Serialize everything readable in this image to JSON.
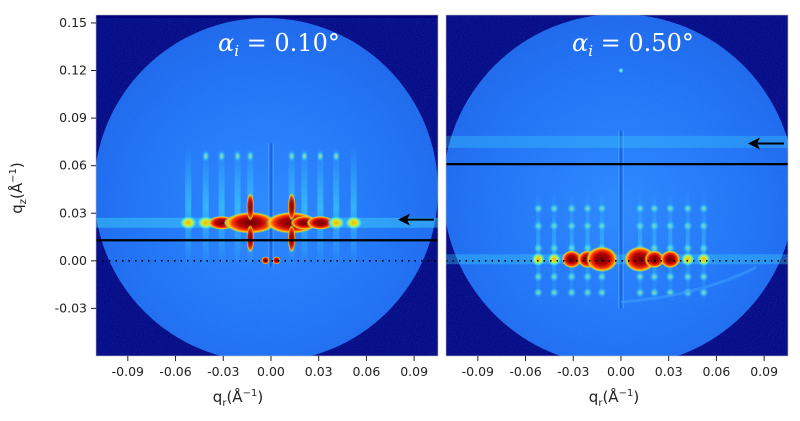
{
  "chart_data": [
    {
      "type": "heatmap",
      "panel": "left",
      "title_symbol": "α",
      "title_sub": "i",
      "title_value": " = 0.10°",
      "xlabel_main": "q",
      "xlabel_sub": "r",
      "xlabel_unit": "(Å",
      "xlabel_unit_end": ")",
      "xlabel_exp": "−1",
      "ylabel_main": "q",
      "ylabel_sub": "z",
      "ylabel_unit": "(Å",
      "ylabel_unit_end": ")",
      "ylabel_exp": "−1",
      "xlim": [
        -0.11,
        0.105
      ],
      "ylim": [
        -0.06,
        0.155
      ],
      "x_ticks": [
        -0.09,
        -0.06,
        -0.03,
        0.0,
        0.03,
        0.06,
        0.09
      ],
      "x_tick_labels": [
        "-0.09",
        "-0.06",
        "-0.03",
        "0.00",
        "0.03",
        "0.06",
        "0.09"
      ],
      "y_ticks": [
        -0.03,
        0.0,
        0.03,
        0.06,
        0.09,
        0.12,
        0.15
      ],
      "y_tick_labels": [
        "-0.03",
        "0.00",
        "0.03",
        "0.06",
        "0.09",
        "0.12",
        "0.15"
      ],
      "horizon_qz": 0.0,
      "marker_line_qz": 0.013,
      "arrow_qz": 0.026,
      "yoneda_qz": 0.024,
      "bragg_peaks_qr": [
        -0.052,
        -0.041,
        -0.031,
        -0.021,
        -0.013,
        0.013,
        0.021,
        0.031,
        0.041,
        0.052
      ],
      "strong_peaks_qr": [
        -0.013,
        0.013
      ]
    },
    {
      "type": "heatmap",
      "panel": "right",
      "title_symbol": "α",
      "title_sub": "i",
      "title_value": " = 0.50°",
      "xlabel_main": "q",
      "xlabel_sub": "r",
      "xlabel_unit": "(Å",
      "xlabel_unit_end": ")",
      "xlabel_exp": "−1",
      "xlim": [
        -0.11,
        0.105
      ],
      "ylim": [
        -0.06,
        0.155
      ],
      "x_ticks": [
        -0.09,
        -0.06,
        -0.03,
        0.0,
        0.03,
        0.06,
        0.09
      ],
      "x_tick_labels": [
        "-0.09",
        "-0.06",
        "-0.03",
        "0.00",
        "0.03",
        "0.06",
        "0.09"
      ],
      "horizon_qz": 0.0,
      "marker_line_qz": 0.061,
      "arrow_qz": 0.074,
      "bragg_peaks_qr": [
        -0.052,
        -0.042,
        -0.031,
        -0.021,
        -0.012,
        0.012,
        0.021,
        0.031,
        0.042,
        0.052
      ],
      "strong_peaks_qr": [
        -0.012,
        0.012
      ]
    }
  ],
  "colors": {
    "background_dark": "#00007e",
    "field_blue": "#1d6ff5",
    "field_blue_light": "#2f93ff",
    "peak_cyan": "#3bd6f7",
    "peak_yellow": "#ffe400",
    "peak_orange": "#ff5a00",
    "peak_red": "#b40000",
    "peak_core": "#6e0000",
    "line_black": "#000000"
  }
}
